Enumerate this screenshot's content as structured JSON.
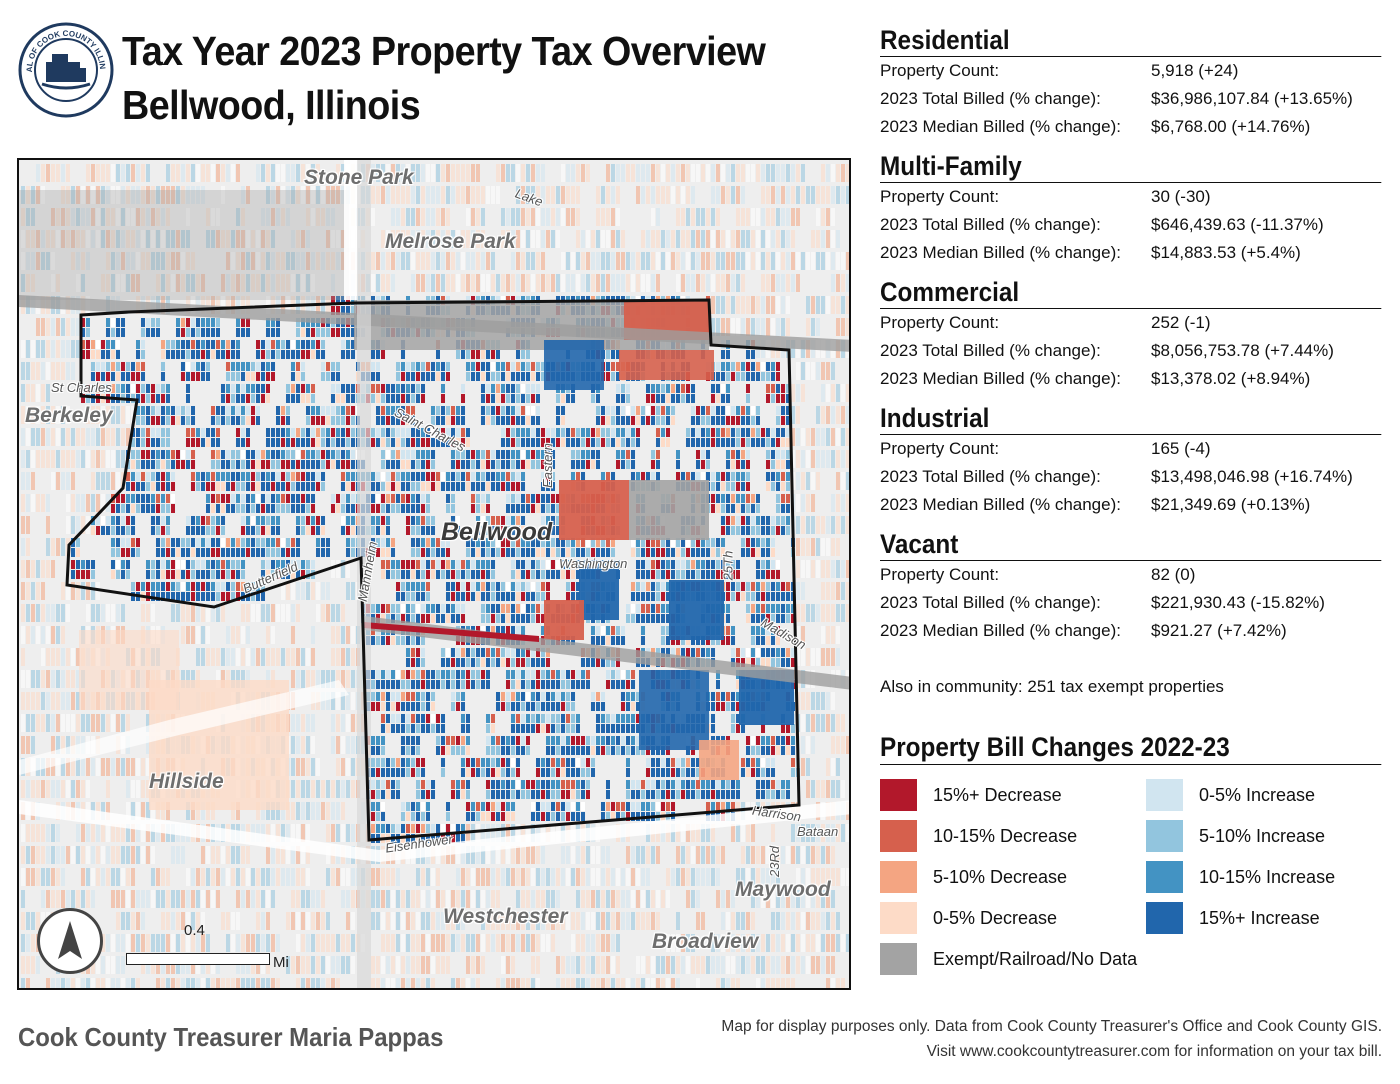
{
  "header": {
    "seal_label": "SEAL OF COOK COUNTY ILLINOIS",
    "title_line1": "Tax Year 2023 Property Tax Overview",
    "title_line2": "Bellwood, Illinois"
  },
  "stats": [
    {
      "category": "Residential",
      "property_count": "5,918 (+24)",
      "total_billed": "$36,986,107.84 (+13.65%)",
      "median_billed": "$6,768.00 (+14.76%)"
    },
    {
      "category": "Multi-Family",
      "property_count": "30 (-30)",
      "total_billed": "$646,439.63 (-11.37%)",
      "median_billed": "$14,883.53 (+5.4%)"
    },
    {
      "category": "Commercial",
      "property_count": "252 (-1)",
      "total_billed": "$8,056,753.78 (+7.44%)",
      "median_billed": "$13,378.02 (+8.94%)"
    },
    {
      "category": "Industrial",
      "property_count": "165 (-4)",
      "total_billed": "$13,498,046.98 (+16.74%)",
      "median_billed": "$21,349.69 (+0.13%)"
    },
    {
      "category": "Vacant",
      "property_count": "82 (0)",
      "total_billed": "$221,930.43 (-15.82%)",
      "median_billed": "$921.27 (+7.42%)"
    }
  ],
  "row_labels": {
    "property_count": "Property Count:",
    "total_billed": "2023 Total Billed (% change):",
    "median_billed": "2023 Median Billed (% change):"
  },
  "exempt_note": "Also in community: 251 tax exempt properties",
  "legend": {
    "title": "Property Bill Changes 2022-23",
    "items": [
      {
        "label": "15%+ Decrease",
        "color": "#b2182b"
      },
      {
        "label": "10-15% Decrease",
        "color": "#d6604d"
      },
      {
        "label": "5-10% Decrease",
        "color": "#f4a582"
      },
      {
        "label": "0-5% Decrease",
        "color": "#fddbc7"
      },
      {
        "label": "0-5% Increase",
        "color": "#d1e5f0"
      },
      {
        "label": "5-10% Increase",
        "color": "#92c5de"
      },
      {
        "label": "10-15% Increase",
        "color": "#4393c3"
      },
      {
        "label": "15%+ Increase",
        "color": "#2166ac"
      },
      {
        "label": "Exempt/Railroad/No Data",
        "color": "#a3a3a3"
      }
    ]
  },
  "map": {
    "places": {
      "stone_park": "Stone Park",
      "melrose_park": "Melrose Park",
      "berkeley": "Berkeley",
      "bellwood": "Bellwood",
      "hillside": "Hillside",
      "westchester": "Westchester",
      "broadview": "Broadview",
      "maywood": "Maywood"
    },
    "roads": {
      "lake": "Lake",
      "st_charles": "St Charles",
      "saint_charles": "Saint Charles",
      "eastern": "Eastern",
      "washington": "Washington",
      "butterfield": "Butterfield",
      "mannheim": "Mannheim",
      "25th": "25Th",
      "madison": "Madison",
      "harrison": "Harrison",
      "bataan": "Bataan",
      "eisenhower": "Eisenhower",
      "23rd": "23Rd"
    },
    "scale_value": "0.4",
    "scale_unit": "Mi"
  },
  "footer": {
    "credit": "Cook County Treasurer Maria Pappas",
    "disclaimer_line1": "Map for display purposes only. Data from Cook County Treasurer's Office and Cook County GIS.",
    "disclaimer_line2": "Visit www.cookcountytreasurer.com for information on your tax bill."
  }
}
